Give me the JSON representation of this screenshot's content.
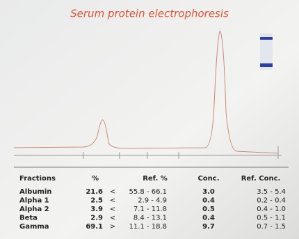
{
  "title": "Serum protein electrophoresis",
  "table": {
    "headers": [
      "Fractions",
      "%",
      "Ref. %",
      "Conc.",
      "Ref. Conc."
    ],
    "rows": [
      [
        "Albumin",
        "21.6",
        "<",
        "55.8 - 66.1",
        "3.0",
        "3.5 -  5.4"
      ],
      [
        "Alpha 1",
        "2.5",
        "<",
        "2.9 -  4.9",
        "0.4",
        "0.2 -  0.4"
      ],
      [
        "Alpha 2",
        "3.9",
        "<",
        "7.1 - 11.8",
        "0.5",
        "0.4 -  1.0"
      ],
      [
        "Beta",
        "2.9",
        "<",
        "8.4 - 13.1",
        "0.4",
        "0.5 -  1.1"
      ],
      [
        "Gamma",
        "69.1",
        ">",
        "11.1 - 18.8",
        "9.7",
        "0.7 -  1.5"
      ]
    ]
  }
}
